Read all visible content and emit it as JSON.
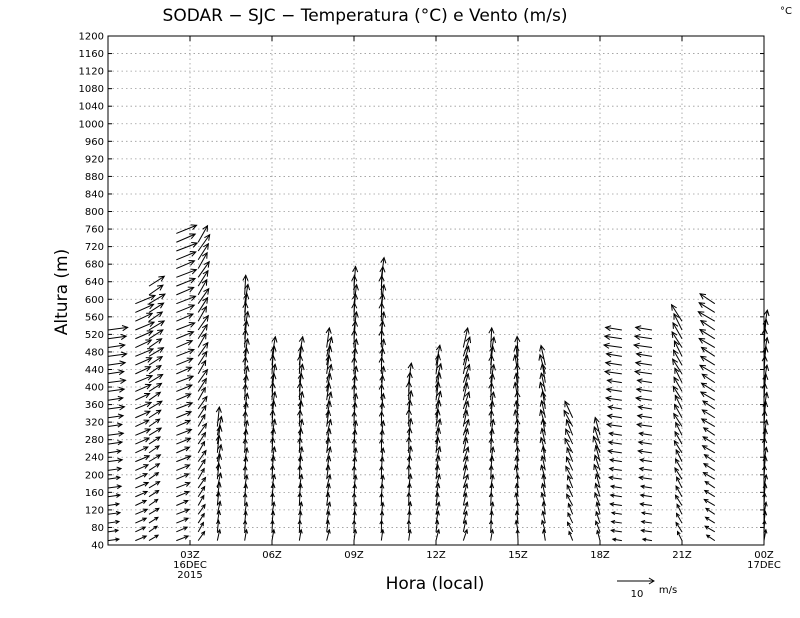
{
  "chart_data": {
    "type": "vector_field",
    "title": "SODAR − SJC − Temperatura (°C) e Vento (m/s)",
    "corner_label": "°C",
    "xlabel": "Hora (local)",
    "ylabel": "Altura (m)",
    "ylim": [
      40,
      1200
    ],
    "y_ticks": [
      40,
      80,
      120,
      160,
      200,
      240,
      280,
      320,
      360,
      400,
      440,
      480,
      520,
      560,
      600,
      640,
      680,
      720,
      760,
      800,
      840,
      880,
      920,
      960,
      1000,
      1040,
      1080,
      1120,
      1160,
      1200
    ],
    "xlim": [
      -2,
      22
    ],
    "x_ticks": [
      {
        "hour": 1,
        "line1": "03Z",
        "line2": "16DEC",
        "line3": "2015"
      },
      {
        "hour": 4,
        "line1": "06Z",
        "line2": "",
        "line3": ""
      },
      {
        "hour": 7,
        "line1": "09Z",
        "line2": "",
        "line3": ""
      },
      {
        "hour": 10,
        "line1": "12Z",
        "line2": "",
        "line3": ""
      },
      {
        "hour": 13,
        "line1": "15Z",
        "line2": "",
        "line3": ""
      },
      {
        "hour": 16,
        "line1": "18Z",
        "line2": "",
        "line3": ""
      },
      {
        "hour": 19,
        "line1": "21Z",
        "line2": "",
        "line3": ""
      },
      {
        "hour": 22,
        "line1": "00Z",
        "line2": "17DEC",
        "line3": ""
      }
    ],
    "grid": true,
    "reference_vector": {
      "value": 10,
      "units": "m/s"
    },
    "profiles": [
      {
        "hour": -2.0,
        "top": 540,
        "u": 5.5,
        "v": 0.8
      },
      {
        "hour": -1.0,
        "top": 600,
        "u": 5.5,
        "v": 2.5
      },
      {
        "hour": -0.5,
        "top": 640,
        "u": 4.5,
        "v": 3.0
      },
      {
        "hour": 0.5,
        "top": 760,
        "u": 6.0,
        "v": 2.5
      },
      {
        "hour": 1.3,
        "top": 730,
        "u": 3.0,
        "v": 5.0
      },
      {
        "hour": 2.0,
        "top": 320,
        "u": 0.8,
        "v": 6.0
      },
      {
        "hour": 3.0,
        "top": 620,
        "u": 0.5,
        "v": 6.0
      },
      {
        "hour": 4.0,
        "top": 480,
        "u": 0.5,
        "v": 6.0
      },
      {
        "hour": 5.0,
        "top": 480,
        "u": 0.5,
        "v": 6.0
      },
      {
        "hour": 6.0,
        "top": 500,
        "u": 1.0,
        "v": 6.0
      },
      {
        "hour": 7.0,
        "top": 645,
        "u": 0.3,
        "v": 6.0
      },
      {
        "hour": 8.0,
        "top": 655,
        "u": 0.3,
        "v": 6.0
      },
      {
        "hour": 9.0,
        "top": 420,
        "u": 0.3,
        "v": 6.0
      },
      {
        "hour": 10.0,
        "top": 450,
        "u": 1.0,
        "v": 6.0
      },
      {
        "hour": 11.0,
        "top": 500,
        "u": 1.5,
        "v": 6.0
      },
      {
        "hour": 12.0,
        "top": 500,
        "u": 0.5,
        "v": 6.0
      },
      {
        "hour": 13.0,
        "top": 470,
        "u": -0.8,
        "v": 6.0
      },
      {
        "hour": 14.0,
        "top": 460,
        "u": -1.5,
        "v": 6.0
      },
      {
        "hour": 15.0,
        "top": 330,
        "u": -2.5,
        "v": 5.0
      },
      {
        "hour": 16.0,
        "top": 300,
        "u": -2.0,
        "v": 5.5
      },
      {
        "hour": 16.8,
        "top": 540,
        "u": -5.5,
        "v": 0.8
      },
      {
        "hour": 17.9,
        "top": 540,
        "u": -5.5,
        "v": 0.8
      },
      {
        "hour": 19.0,
        "top": 550,
        "u": -3.0,
        "v": 5.0
      },
      {
        "hour": 20.2,
        "top": 590,
        "u": -5.0,
        "v": 3.0
      },
      {
        "hour": 22.0,
        "top": 530,
        "u": 0.5,
        "v": 6.0
      }
    ]
  }
}
